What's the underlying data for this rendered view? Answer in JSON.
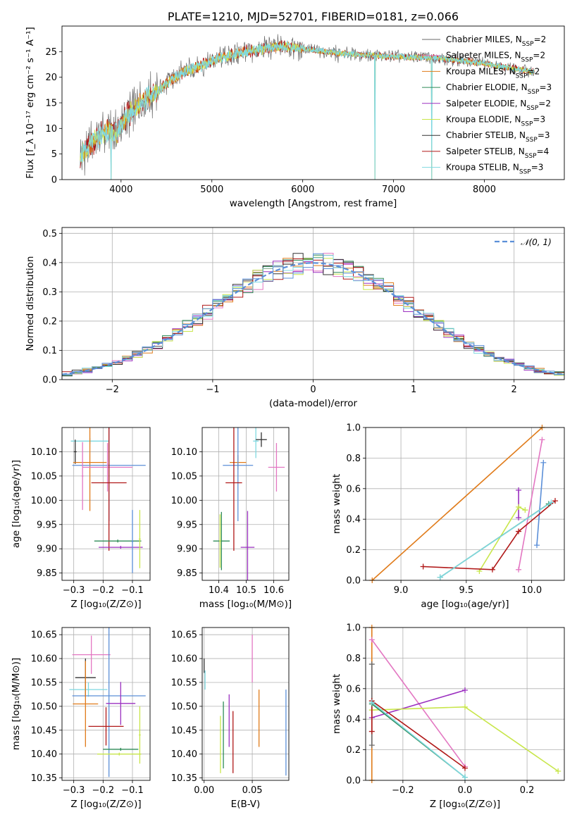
{
  "chart_data": [
    {
      "id": "spectrum",
      "type": "line",
      "title": "PLATE=1210, MJD=52701, FIBERID=0181, z=0.066",
      "xlabel": "wavelength [Angstrom, rest frame]",
      "ylabel": "Flux [f_λ 10⁻¹⁷ erg cm⁻² s⁻¹ A⁻¹]",
      "xlim": [
        3350,
        8880
      ],
      "ylim": [
        0,
        30
      ],
      "xticks": [
        4000,
        5000,
        6000,
        7000,
        8000
      ],
      "yticks": [
        0,
        5,
        10,
        15,
        20,
        25
      ],
      "grid": false,
      "legend_position": "top-right",
      "legend": [
        {
          "label": "Chabrier MILES, N",
          "sub": "SSP",
          "tail": "=2",
          "color": "#6a6a6a"
        },
        {
          "label": "Salpeter MILES, N",
          "sub": "SSP",
          "tail": "=2",
          "color": "#e377c2"
        },
        {
          "label": "Kroupa MILES, N",
          "sub": "SSP",
          "tail": "=2",
          "color": "#e07b1a"
        },
        {
          "label": "Chabrier ELODIE, N",
          "sub": "SSP",
          "tail": "=3",
          "color": "#2e8b57"
        },
        {
          "label": "Salpeter ELODIE, N",
          "sub": "SSP",
          "tail": "=2",
          "color": "#9b30c0"
        },
        {
          "label": "Kroupa ELODIE, N",
          "sub": "SSP",
          "tail": "=3",
          "color": "#c8e64b"
        },
        {
          "label": "Chabrier STELIB, N",
          "sub": "SSP",
          "tail": "=3",
          "color": "#333333"
        },
        {
          "label": "Salpeter STELIB, N",
          "sub": "SSP",
          "tail": "=4",
          "color": "#b01818"
        },
        {
          "label": "Kroupa STELIB, N",
          "sub": "SSP",
          "tail": "=3",
          "color": "#7fd8e0"
        }
      ],
      "envelope": {
        "x": [
          3550,
          3650,
          3750,
          3850,
          3950,
          4050,
          4150,
          4250,
          4350,
          4450,
          4550,
          4650,
          4750,
          4850,
          4950,
          5050,
          5150,
          5250,
          5350,
          5450,
          5550,
          5650,
          5750,
          5850,
          5950,
          6050,
          6150,
          6250,
          6350,
          6450,
          6550,
          6650,
          6750,
          6850,
          6950,
          7050,
          7150,
          7250,
          7350,
          7450,
          7550,
          7650,
          7750,
          7850,
          7950,
          8050,
          8150,
          8250,
          8350,
          8450,
          8550
        ],
        "y": [
          4.5,
          6.5,
          8.5,
          9.5,
          9.0,
          12.0,
          14.0,
          15.5,
          16.5,
          18.0,
          19.5,
          20.5,
          21.5,
          22.0,
          22.8,
          23.5,
          24.0,
          24.5,
          25.0,
          25.2,
          25.5,
          25.8,
          26.0,
          26.0,
          25.7,
          25.5,
          25.2,
          25.0,
          24.8,
          24.6,
          24.5,
          24.4,
          24.3,
          24.2,
          24.1,
          24.0,
          23.9,
          23.9,
          23.9,
          23.8,
          23.6,
          23.4,
          23.2,
          23.0,
          22.8,
          22.5,
          22.2,
          21.9,
          21.6,
          21.3,
          21.0
        ]
      },
      "dips": [
        3890,
        6795,
        7420
      ]
    },
    {
      "id": "residuals",
      "type": "step",
      "xlabel": "(data-model)/error",
      "ylabel": "Normed distribution",
      "xlim": [
        -2.5,
        2.5
      ],
      "ylim": [
        0,
        0.52
      ],
      "xticks": [
        -2,
        -1,
        0,
        1,
        2
      ],
      "yticks": [
        0.0,
        0.1,
        0.2,
        0.3,
        0.4,
        0.5
      ],
      "grid": true,
      "legend_position": "top-right",
      "curve": {
        "name": "𝒩(0, 1)",
        "color": "#5b8fd8"
      },
      "bins": {
        "start": -2.5,
        "width": 0.1
      },
      "series": [
        {
          "color": "#e377c2",
          "offset": 0.0
        },
        {
          "color": "#e07b1a",
          "offset": 1.0
        },
        {
          "color": "#2e8b57",
          "offset": 2.0
        },
        {
          "color": "#9b30c0",
          "offset": 3.0
        },
        {
          "color": "#c8e64b",
          "offset": 4.0
        },
        {
          "color": "#333333",
          "offset": 5.0
        },
        {
          "color": "#b01818",
          "offset": 6.0
        },
        {
          "color": "#7fd8e0",
          "offset": 7.0
        },
        {
          "color": "#5b8fd8",
          "offset": 8.0
        }
      ]
    },
    {
      "id": "age-vs-z",
      "type": "errorbar",
      "xlabel": "Z [log₁₀(Z/Z⊙)]",
      "ylabel": "age  [log₁₀(age/yr)]",
      "xlim": [
        -0.34,
        -0.04
      ],
      "ylim": [
        9.835,
        10.15
      ],
      "xticks": [
        -0.3,
        -0.2,
        -0.1
      ],
      "yticks": [
        9.85,
        9.9,
        9.95,
        10.0,
        10.05,
        10.1
      ],
      "grid": true,
      "points": [
        {
          "color": "#7fd8e0",
          "x": -0.245,
          "xerr": 0.065,
          "y": 10.122,
          "yerr": 0.006
        },
        {
          "color": "#333333",
          "x": -0.295,
          "xerr": 0.005,
          "y": 10.1,
          "yerr": 0.025
        },
        {
          "color": "#e07b1a",
          "x": -0.245,
          "xerr": 0.057,
          "y": 10.078,
          "yerr": 0.1
        },
        {
          "color": "#5b8fd8",
          "x": -0.18,
          "xerr": 0.125,
          "y": 10.072,
          "yerr": 0.115
        },
        {
          "color": "#e377c2",
          "x": -0.185,
          "xerr": 0.085,
          "y": 10.068,
          "yerr": 0.05
        },
        {
          "color": "#b01818",
          "x": -0.18,
          "xerr": 0.06,
          "y": 10.036,
          "yerr": 0.14
        },
        {
          "color": "#2e8b57",
          "x": -0.15,
          "xerr": 0.08,
          "y": 9.916,
          "yerr": 0.003
        },
        {
          "color": "#9b30c0",
          "x": -0.14,
          "xerr": 0.075,
          "y": 9.903,
          "yerr": 0.003
        },
        {
          "color": "#c8e64b",
          "x": -0.075,
          "xerr": 0.003,
          "y": 9.92,
          "yerr": 0.06
        },
        {
          "color": "#5b8fd8",
          "x": -0.1,
          "xerr": 0.003,
          "y": 9.915,
          "yerr": 0.065
        },
        {
          "color": "#e377c2",
          "x": -0.27,
          "xerr": 0.003,
          "y": 10.05,
          "yerr": 0.07
        }
      ]
    },
    {
      "id": "age-vs-mass",
      "type": "errorbar",
      "xlabel": "mass [log₁₀(M/M⊙)]",
      "ylabel": "",
      "xlim": [
        10.34,
        10.655
      ],
      "ylim": [
        9.835,
        10.15
      ],
      "xticks": [
        10.4,
        10.5,
        10.6
      ],
      "yticks": [
        9.85,
        9.9,
        9.95,
        10.0,
        10.05,
        10.1
      ],
      "grid": true,
      "points": [
        {
          "color": "#7fd8e0",
          "x": 10.535,
          "xerr": 0.01,
          "y": 10.122,
          "yerr": 0.035
        },
        {
          "color": "#333333",
          "x": 10.555,
          "xerr": 0.02,
          "y": 10.125,
          "yerr": 0.015
        },
        {
          "color": "#e07b1a",
          "x": 10.47,
          "xerr": 0.03,
          "y": 10.078,
          "yerr": 0.015
        },
        {
          "color": "#5b8fd8",
          "x": 10.47,
          "xerr": 0.055,
          "y": 10.072,
          "yerr": 0.115
        },
        {
          "color": "#e377c2",
          "x": 10.61,
          "xerr": 0.03,
          "y": 10.068,
          "yerr": 0.05
        },
        {
          "color": "#b01818",
          "x": 10.455,
          "xerr": 0.03,
          "y": 10.036,
          "yerr": 0.14
        },
        {
          "color": "#2e8b57",
          "x": 10.41,
          "xerr": 0.03,
          "y": 9.916,
          "yerr": 0.06
        },
        {
          "color": "#9b30c0",
          "x": 10.505,
          "xerr": 0.025,
          "y": 9.903,
          "yerr": 0.075
        },
        {
          "color": "#c8e64b",
          "x": 10.405,
          "xerr": 0.003,
          "y": 9.916,
          "yerr": 0.055
        }
      ]
    },
    {
      "id": "weight-vs-age",
      "type": "line",
      "xlabel": "age  [log₁₀(age/yr)]",
      "ylabel": "mass weight",
      "xlim": [
        8.73,
        10.25
      ],
      "ylim": [
        0,
        1.0
      ],
      "xticks": [
        9.0,
        9.5,
        10.0
      ],
      "yticks": [
        0.0,
        0.2,
        0.4,
        0.6,
        0.8,
        1.0
      ],
      "grid": true,
      "series": [
        {
          "color": "#e07b1a",
          "x": [
            8.78,
            10.08
          ],
          "y": [
            0.0,
            1.0
          ]
        },
        {
          "color": "#e377c2",
          "x": [
            9.9,
            10.08
          ],
          "y": [
            0.07,
            0.92
          ]
        },
        {
          "color": "#5b8fd8",
          "x": [
            10.04,
            10.09
          ],
          "y": [
            0.23,
            0.77
          ]
        },
        {
          "color": "#9b30c0",
          "x": [
            9.9,
            9.9
          ],
          "y": [
            0.41,
            0.59
          ]
        },
        {
          "color": "#c8e64b",
          "x": [
            9.6,
            9.9,
            9.95
          ],
          "y": [
            0.06,
            0.48,
            0.46
          ]
        },
        {
          "color": "#b01818",
          "x": [
            9.17,
            9.7,
            9.9,
            10.18
          ],
          "y": [
            0.09,
            0.07,
            0.32,
            0.52
          ]
        },
        {
          "color": "#2e8b57",
          "x": [
            9.3,
            10.13
          ],
          "y": [
            0.02,
            0.5
          ]
        },
        {
          "color": "#7fd8e0",
          "x": [
            9.3,
            10.15
          ],
          "y": [
            0.02,
            0.51
          ]
        }
      ]
    },
    {
      "id": "mass-vs-z",
      "type": "errorbar",
      "xlabel": "Z [log₁₀(Z/Z⊙)]",
      "ylabel": "mass [log₁₀(M/M⊙)]",
      "xlim": [
        -0.34,
        -0.04
      ],
      "ylim": [
        10.345,
        10.665
      ],
      "xticks": [
        -0.3,
        -0.2,
        -0.1
      ],
      "yticks": [
        10.35,
        10.4,
        10.45,
        10.5,
        10.55,
        10.6,
        10.65
      ],
      "grid": true,
      "points": [
        {
          "color": "#e377c2",
          "x": -0.24,
          "xerr": 0.065,
          "y": 10.608,
          "yerr": 0.04
        },
        {
          "color": "#333333",
          "x": -0.26,
          "xerr": 0.035,
          "y": 10.56,
          "yerr": 0.04
        },
        {
          "color": "#7fd8e0",
          "x": -0.25,
          "xerr": 0.065,
          "y": 10.535,
          "yerr": 0.015
        },
        {
          "color": "#5b8fd8",
          "x": -0.18,
          "xerr": 0.125,
          "y": 10.522,
          "yerr": 0.17
        },
        {
          "color": "#9b30c0",
          "x": -0.14,
          "xerr": 0.05,
          "y": 10.506,
          "yerr": 0.045
        },
        {
          "color": "#e07b1a",
          "x": -0.26,
          "xerr": 0.043,
          "y": 10.505,
          "yerr": 0.09
        },
        {
          "color": "#b01818",
          "x": -0.19,
          "xerr": 0.06,
          "y": 10.458,
          "yerr": 0.04
        },
        {
          "color": "#2e8b57",
          "x": -0.14,
          "xerr": 0.06,
          "y": 10.41,
          "yerr": 0.003
        },
        {
          "color": "#c8e64b",
          "x": -0.145,
          "xerr": 0.075,
          "y": 10.4,
          "yerr": 0.003
        },
        {
          "color": "#c8e64b",
          "x": -0.075,
          "xerr": 0.003,
          "y": 10.44,
          "yerr": 0.06
        }
      ]
    },
    {
      "id": "mass-vs-ebv",
      "type": "errorbar",
      "xlabel": "E(B-V)",
      "ylabel": "",
      "xlim": [
        -0.002,
        0.088
      ],
      "ylim": [
        10.345,
        10.665
      ],
      "xticks": [
        0.0,
        0.05
      ],
      "yticks": [
        10.35,
        10.4,
        10.45,
        10.5,
        10.55,
        10.6,
        10.65
      ],
      "grid": true,
      "points": [
        {
          "color": "#333333",
          "x": 0.0,
          "xerr": 0.0,
          "y": 10.585,
          "yerr": 0.015
        },
        {
          "color": "#7fd8e0",
          "x": 0.001,
          "xerr": 0.0,
          "y": 10.555,
          "yerr": 0.02
        },
        {
          "color": "#e377c2",
          "x": 0.05,
          "xerr": 0.0,
          "y": 10.6,
          "yerr": 0.05
        },
        {
          "color": "#9b30c0",
          "x": 0.026,
          "xerr": 0.0,
          "y": 10.47,
          "yerr": 0.055
        },
        {
          "color": "#2e8b57",
          "x": 0.02,
          "xerr": 0.0,
          "y": 10.44,
          "yerr": 0.07
        },
        {
          "color": "#c8e64b",
          "x": 0.017,
          "xerr": 0.0,
          "y": 10.42,
          "yerr": 0.06
        },
        {
          "color": "#b01818",
          "x": 0.03,
          "xerr": 0.0,
          "y": 10.425,
          "yerr": 0.065
        },
        {
          "color": "#e07b1a",
          "x": 0.057,
          "xerr": 0.0,
          "y": 10.475,
          "yerr": 0.06
        },
        {
          "color": "#5b8fd8",
          "x": 0.085,
          "xerr": 0.0,
          "y": 10.445,
          "yerr": 0.09
        }
      ]
    },
    {
      "id": "weight-vs-z",
      "type": "line",
      "xlabel": "Z [log₁₀(Z/Z⊙)]",
      "ylabel": "mass weight",
      "xlim": [
        -0.32,
        0.32
      ],
      "ylim": [
        0,
        1.0
      ],
      "xticks": [
        -0.2,
        0.0,
        0.2
      ],
      "yticks": [
        0.0,
        0.2,
        0.4,
        0.6,
        0.8,
        1.0
      ],
      "grid": true,
      "series": [
        {
          "color": "#e07b1a",
          "x": [
            -0.3,
            -0.3
          ],
          "y": [
            0.0,
            1.0
          ]
        },
        {
          "color": "#e377c2",
          "x": [
            -0.3,
            0.0
          ],
          "y": [
            0.92,
            0.09
          ]
        },
        {
          "color": "#6a6a6a",
          "x": [
            -0.3,
            -0.3
          ],
          "y": [
            0.23,
            0.76
          ]
        },
        {
          "color": "#9b30c0",
          "x": [
            -0.3,
            0.0
          ],
          "y": [
            0.41,
            0.59
          ]
        },
        {
          "color": "#c8e64b",
          "x": [
            -0.3,
            0.0,
            0.3
          ],
          "y": [
            0.46,
            0.48,
            0.06
          ]
        },
        {
          "color": "#b01818",
          "x": [
            -0.3,
            -0.3,
            0.0
          ],
          "y": [
            0.32,
            0.52,
            0.08
          ]
        },
        {
          "color": "#2e8b57",
          "x": [
            -0.3,
            0.0
          ],
          "y": [
            0.5,
            0.02
          ]
        },
        {
          "color": "#7fd8e0",
          "x": [
            -0.3,
            0.0
          ],
          "y": [
            0.51,
            0.02
          ]
        }
      ]
    }
  ]
}
